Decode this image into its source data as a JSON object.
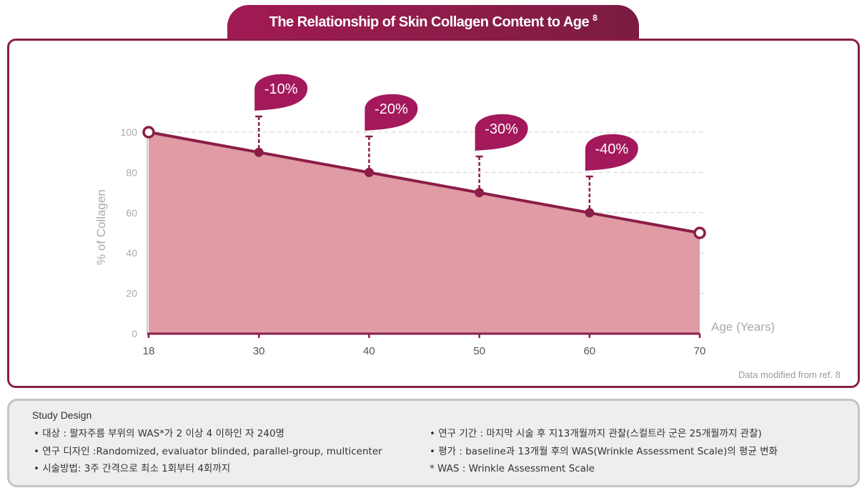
{
  "title": "The Relationship of Skin Collagen Content to Age",
  "title_ref": "8",
  "source_note": "Data modified from ref. 8",
  "chart_data": {
    "type": "area",
    "title": "The Relationship of Skin Collagen Content to Age",
    "x": [
      18,
      30,
      40,
      50,
      60,
      70
    ],
    "x_ticks": [
      "18",
      "30",
      "40",
      "50",
      "60",
      "70"
    ],
    "series": [
      {
        "name": "% of Collagen",
        "values": [
          100,
          90,
          80,
          70,
          60,
          50
        ]
      }
    ],
    "ylabel": "% of Collagen",
    "xlabel": "Age (Years)",
    "ylim": [
      0,
      100
    ],
    "y_ticks": [
      0,
      20,
      40,
      60,
      80,
      100
    ],
    "grid": true,
    "annotations": [
      {
        "x": 30,
        "value": 90,
        "label": "-10%"
      },
      {
        "x": 40,
        "value": 80,
        "label": "-20%"
      },
      {
        "x": 50,
        "value": 70,
        "label": "-30%"
      },
      {
        "x": 60,
        "value": 60,
        "label": "-40%"
      }
    ],
    "colors": {
      "line": "#8b1d48",
      "fill": "#e09ba4",
      "bubble": "#a3195b",
      "grid": "#d0d0d0",
      "axis_text": "#aaaaaa",
      "tick_text": "#555555"
    }
  },
  "study_design": {
    "title": "Study Design",
    "left_items": [
      "• 대상 : 팔자주름 부위의 WAS*가 2 이상 4 이하인 자 240명",
      "• 연구 디자인 :Randomized, evaluator blinded, parallel-group, multicenter",
      "• 시술방법: 3주 간격으로 최소 1회부터 4회까지"
    ],
    "right_items": [
      "• 연구 기간 : 마지막 시술 후 지13개월까지 관찰(스컬트라 군은 25개월까지 관찰)",
      "• 평가 : baseline과 13개월 후의 WAS(Wrinkle Assessment Scale)의 평균 변화",
      "* WAS : Wrinkle Assessment Scale"
    ]
  }
}
